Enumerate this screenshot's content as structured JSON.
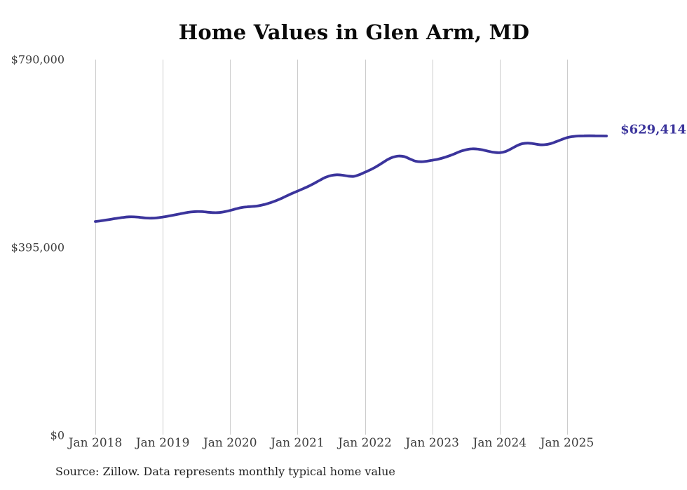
{
  "page": {
    "background_color": "#ffffff"
  },
  "chart": {
    "title": "Home Values in Glen Arm, MD",
    "end_label": "$629,414",
    "source_note": "Source: Zillow. Data represents monthly typical home value",
    "line_color": "#3b349c",
    "grid_color": "#cccccc",
    "tick_label_color": "#3d3d3d"
  },
  "chart_data": {
    "type": "line",
    "title": "Home Values in Glen Arm, MD",
    "xlabel": "",
    "ylabel": "",
    "ylim": [
      0,
      790000
    ],
    "grid": "vertical-only",
    "frequency": "monthly",
    "x_start": "2018-01",
    "x_end": "2025-08",
    "latest_value": 629414,
    "latest_value_label": "$629,414",
    "y_ticks": [
      {
        "value": 790000,
        "label": "$790,000"
      },
      {
        "value": 395000,
        "label": "$395,000"
      },
      {
        "value": 0,
        "label": "$0"
      }
    ],
    "x_ticks": [
      {
        "month_index": 0,
        "label": "Jan 2018"
      },
      {
        "month_index": 12,
        "label": "Jan 2019"
      },
      {
        "month_index": 24,
        "label": "Jan 2020"
      },
      {
        "month_index": 36,
        "label": "Jan 2021"
      },
      {
        "month_index": 48,
        "label": "Jan 2022"
      },
      {
        "month_index": 60,
        "label": "Jan 2023"
      },
      {
        "month_index": 72,
        "label": "Jan 2024"
      },
      {
        "month_index": 84,
        "label": "Jan 2025"
      }
    ],
    "series": [
      {
        "name": "Monthly typical home value",
        "color": "#3b349c",
        "values": [
          449500,
          451000,
          452800,
          454700,
          456600,
          458300,
          459400,
          459300,
          458200,
          456900,
          456600,
          457300,
          459000,
          461000,
          463200,
          465500,
          467800,
          469600,
          470500,
          470300,
          469200,
          468200,
          468400,
          470200,
          472800,
          476000,
          478800,
          480400,
          481200,
          482500,
          485000,
          488500,
          492500,
          497500,
          503000,
          508500,
          513500,
          518500,
          524000,
          530000,
          536500,
          542500,
          546300,
          547800,
          547000,
          545000,
          544500,
          548000,
          553200,
          558500,
          564800,
          572000,
          579500,
          584800,
          587200,
          586000,
          581200,
          576500,
          575200,
          576300,
          578400,
          580600,
          583600,
          587600,
          592200,
          597000,
          600500,
          602300,
          602000,
          600000,
          597200,
          595000,
          594300,
          596600,
          602200,
          608600,
          613100,
          614300,
          613200,
          611200,
          611000,
          613200,
          617200,
          621800,
          625900,
          628100,
          629300,
          629700,
          629800,
          629700,
          629500,
          629414
        ]
      }
    ]
  }
}
